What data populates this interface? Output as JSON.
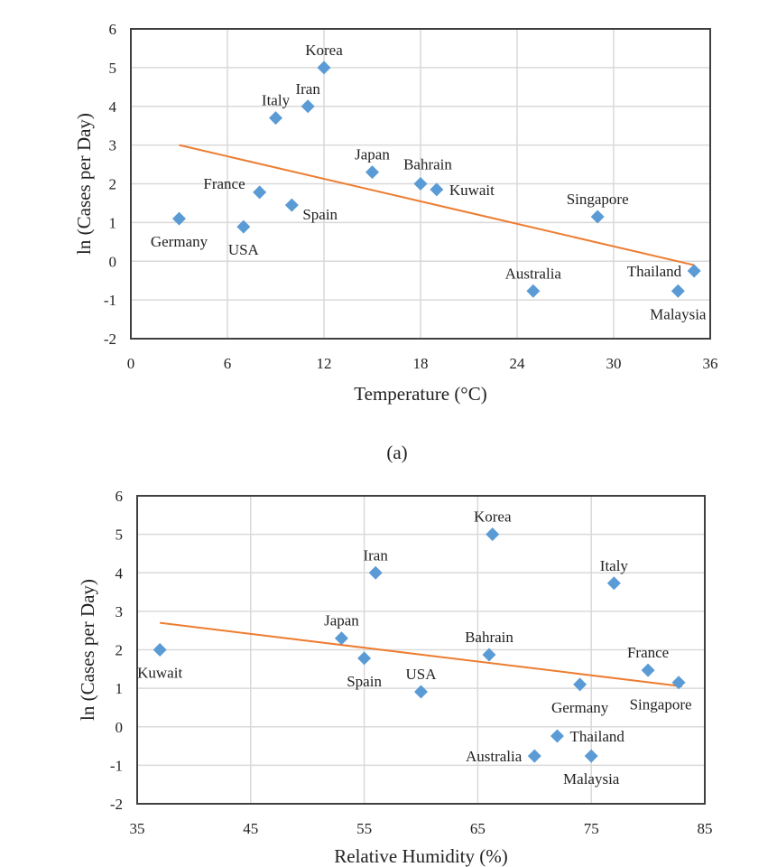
{
  "colors": {
    "marker": "#5b9bd5",
    "trend": "#ed7d31",
    "grid": "#d9d9d9",
    "axis": "#404040"
  },
  "chart_data": [
    {
      "type": "scatter",
      "caption": "(a)",
      "xlabel": "Temperature (°C)",
      "ylabel": "ln (Cases per Day)",
      "xlim": [
        0,
        36
      ],
      "ylim": [
        -2,
        6
      ],
      "xticks": [
        0,
        6,
        12,
        18,
        24,
        30,
        36
      ],
      "yticks": [
        -2,
        -1,
        0,
        1,
        2,
        3,
        4,
        5,
        6
      ],
      "grid": true,
      "points": [
        {
          "label": "Korea",
          "x": 12,
          "y": 5.0,
          "pos": "above"
        },
        {
          "label": "Iran",
          "x": 11,
          "y": 4.0,
          "pos": "above"
        },
        {
          "label": "Italy",
          "x": 9,
          "y": 3.7,
          "pos": "above"
        },
        {
          "label": "Japan",
          "x": 15,
          "y": 2.3,
          "pos": "above"
        },
        {
          "label": "Bahrain",
          "x": 18,
          "y": 2.0,
          "pos": "above-right"
        },
        {
          "label": "Kuwait",
          "x": 19,
          "y": 1.85,
          "pos": "right"
        },
        {
          "label": "France",
          "x": 8,
          "y": 1.78,
          "pos": "left-above"
        },
        {
          "label": "Spain",
          "x": 10,
          "y": 1.45,
          "pos": "below-right"
        },
        {
          "label": "Germany",
          "x": 3,
          "y": 1.1,
          "pos": "below"
        },
        {
          "label": "USA",
          "x": 7,
          "y": 0.89,
          "pos": "below"
        },
        {
          "label": "Singapore",
          "x": 29,
          "y": 1.15,
          "pos": "above"
        },
        {
          "label": "Australia",
          "x": 25,
          "y": -0.77,
          "pos": "above"
        },
        {
          "label": "Thailand",
          "x": 35,
          "y": -0.25,
          "pos": "left"
        },
        {
          "label": "Malaysia",
          "x": 34,
          "y": -0.77,
          "pos": "below"
        }
      ],
      "trendline": {
        "x": [
          3,
          35
        ],
        "y": [
          3.0,
          -0.1
        ]
      }
    },
    {
      "type": "scatter",
      "caption": "",
      "xlabel": "Relative Humidity (%)",
      "ylabel": "ln (Cases per Day)",
      "xlim": [
        35,
        85
      ],
      "ylim": [
        -2,
        6
      ],
      "xticks": [
        35,
        45,
        55,
        65,
        75,
        85
      ],
      "yticks": [
        -2,
        -1,
        0,
        1,
        2,
        3,
        4,
        5,
        6
      ],
      "grid": true,
      "points": [
        {
          "label": "Kuwait",
          "x": 37,
          "y": 2.0,
          "pos": "below"
        },
        {
          "label": "Japan",
          "x": 53,
          "y": 2.3,
          "pos": "above"
        },
        {
          "label": "Iran",
          "x": 56,
          "y": 4.0,
          "pos": "above"
        },
        {
          "label": "Spain",
          "x": 55,
          "y": 1.78,
          "pos": "below"
        },
        {
          "label": "USA",
          "x": 60,
          "y": 0.91,
          "pos": "above"
        },
        {
          "label": "Korea",
          "x": 66.3,
          "y": 5.0,
          "pos": "above"
        },
        {
          "label": "Bahrain",
          "x": 66,
          "y": 1.87,
          "pos": "above"
        },
        {
          "label": "Italy",
          "x": 77,
          "y": 3.73,
          "pos": "above"
        },
        {
          "label": "Germany",
          "x": 74,
          "y": 1.1,
          "pos": "below"
        },
        {
          "label": "France",
          "x": 80,
          "y": 1.47,
          "pos": "above"
        },
        {
          "label": "Singapore",
          "x": 82.7,
          "y": 1.15,
          "pos": "below-left"
        },
        {
          "label": "Thailand",
          "x": 72,
          "y": -0.24,
          "pos": "right"
        },
        {
          "label": "Australia",
          "x": 70,
          "y": -0.76,
          "pos": "left"
        },
        {
          "label": "Malaysia",
          "x": 75,
          "y": -0.76,
          "pos": "below"
        }
      ],
      "trendline": {
        "x": [
          37,
          83
        ],
        "y": [
          2.7,
          1.05
        ]
      }
    }
  ]
}
